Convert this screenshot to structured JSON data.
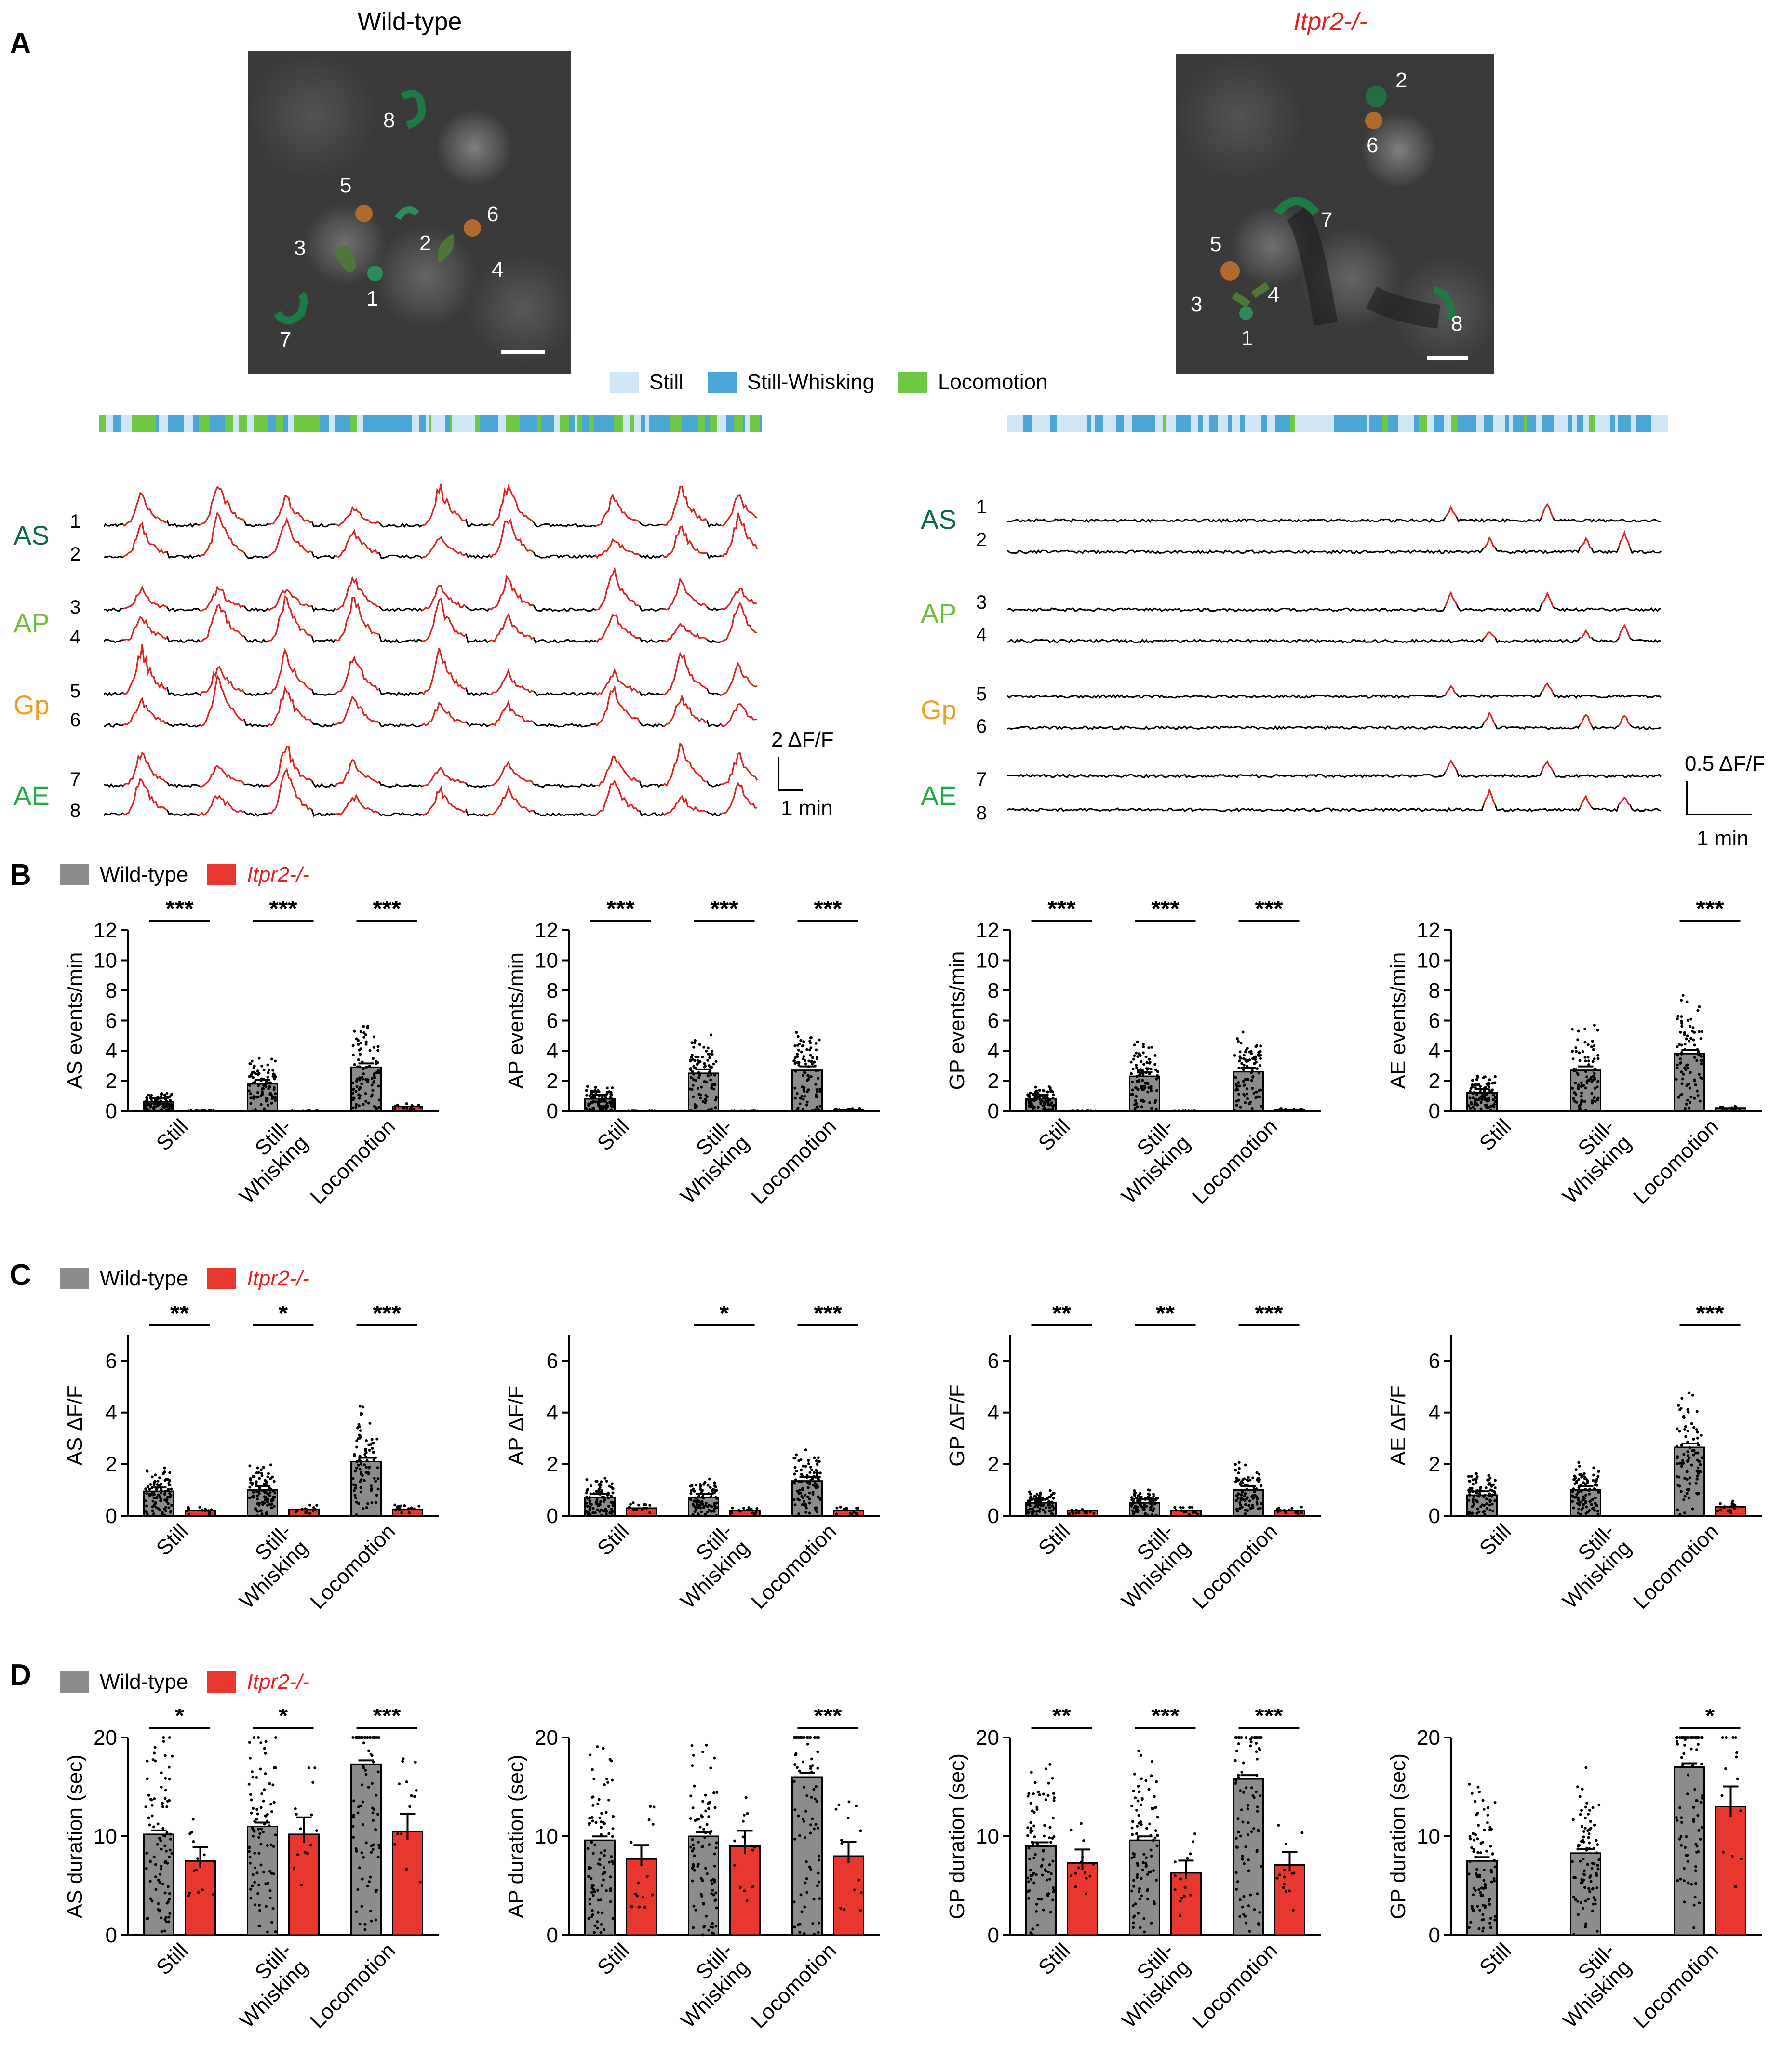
{
  "panels": {
    "A": "A",
    "B": "B",
    "C": "C",
    "D": "D"
  },
  "panel_a": {
    "left_title": "Wild-type",
    "right_title": "Itpr2-/-",
    "left_rois": [
      "1",
      "2",
      "3",
      "4",
      "5",
      "6",
      "7",
      "8"
    ],
    "right_rois": [
      "1",
      "2",
      "3",
      "4",
      "5",
      "6",
      "7",
      "8"
    ],
    "state_legend": [
      {
        "label": "Still",
        "color": "#cfe6f6"
      },
      {
        "label": "Still-Whisking",
        "color": "#4aa6d6"
      },
      {
        "label": "Locomotion",
        "color": "#6fc844"
      }
    ],
    "groups": [
      {
        "label": "AS",
        "color": "#0b6b3a",
        "rows": [
          "1",
          "2"
        ]
      },
      {
        "label": "AP",
        "color": "#6bbf3a",
        "rows": [
          "3",
          "4"
        ]
      },
      {
        "label": "Gp",
        "color": "#f0a020",
        "rows": [
          "5",
          "6"
        ]
      },
      {
        "label": "AE",
        "color": "#22aa44",
        "rows": [
          "7",
          "8"
        ]
      }
    ],
    "left_scale": {
      "y": "2 ΔF/F",
      "x": "1 min"
    },
    "right_scale": {
      "y": "0.5 ΔF/F",
      "x": "1 min"
    },
    "trace_colors": {
      "event": "#e8201c",
      "baseline": "#000000"
    }
  },
  "legend": {
    "wt": "Wild-type",
    "ko": "Itpr2-/-",
    "wt_color": "#8c8c8c",
    "ko_color": "#e8372e"
  },
  "categories": [
    "Still",
    "Still-\nWhisking",
    "Locomotion"
  ],
  "chart_data": [
    {
      "type": "bar",
      "panel": "B",
      "ylabel": "AS events/min",
      "ylim": [
        0,
        12
      ],
      "yticks": [
        0,
        2,
        4,
        6,
        8,
        10,
        12
      ],
      "categories": [
        "Still",
        "Still-Whisking",
        "Locomotion"
      ],
      "series": [
        {
          "name": "Wild-type",
          "values": [
            0.6,
            1.8,
            2.9
          ]
        },
        {
          "name": "Itpr2-/-",
          "values": [
            0.05,
            0.02,
            0.3
          ]
        }
      ],
      "significance": [
        "***",
        "***",
        "***"
      ]
    },
    {
      "type": "bar",
      "panel": "B",
      "ylabel": "AP events/min",
      "ylim": [
        0,
        12
      ],
      "yticks": [
        0,
        2,
        4,
        6,
        8,
        10,
        12
      ],
      "categories": [
        "Still",
        "Still-Whisking",
        "Locomotion"
      ],
      "series": [
        {
          "name": "Wild-type",
          "values": [
            0.8,
            2.5,
            2.7
          ]
        },
        {
          "name": "Itpr2-/-",
          "values": [
            0.02,
            0.02,
            0.1
          ]
        }
      ],
      "significance": [
        "***",
        "***",
        "***"
      ]
    },
    {
      "type": "bar",
      "panel": "B",
      "ylabel": "GP events/min",
      "ylim": [
        0,
        12
      ],
      "yticks": [
        0,
        2,
        4,
        6,
        8,
        10,
        12
      ],
      "categories": [
        "Still",
        "Still-Whisking",
        "Locomotion"
      ],
      "series": [
        {
          "name": "Wild-type",
          "values": [
            0.8,
            2.3,
            2.6
          ]
        },
        {
          "name": "Itpr2-/-",
          "values": [
            0.02,
            0.02,
            0.1
          ]
        }
      ],
      "significance": [
        "***",
        "***",
        "***"
      ]
    },
    {
      "type": "bar",
      "panel": "B",
      "ylabel": "AE events/min",
      "ylim": [
        0,
        12
      ],
      "yticks": [
        0,
        2,
        4,
        6,
        8,
        10,
        12
      ],
      "categories": [
        "Still",
        "Still-Whisking",
        "Locomotion"
      ],
      "series": [
        {
          "name": "Wild-type",
          "values": [
            1.2,
            2.7,
            3.8
          ]
        },
        {
          "name": "Itpr2-/-",
          "values": [
            0,
            0,
            0.2
          ]
        }
      ],
      "significance": [
        "",
        "",
        "***"
      ]
    },
    {
      "type": "bar",
      "panel": "C",
      "ylabel": "AS ΔF/F",
      "ylim": [
        0,
        7
      ],
      "yticks": [
        0,
        2,
        4,
        6
      ],
      "categories": [
        "Still",
        "Still-Whisking",
        "Locomotion"
      ],
      "series": [
        {
          "name": "Wild-type",
          "values": [
            0.95,
            1.0,
            2.1
          ]
        },
        {
          "name": "Itpr2-/-",
          "values": [
            0.2,
            0.25,
            0.25
          ]
        }
      ],
      "significance": [
        "**",
        "*",
        "***"
      ]
    },
    {
      "type": "bar",
      "panel": "C",
      "ylabel": "AP ΔF/F",
      "ylim": [
        0,
        7
      ],
      "yticks": [
        0,
        2,
        4,
        6
      ],
      "categories": [
        "Still",
        "Still-Whisking",
        "Locomotion"
      ],
      "series": [
        {
          "name": "Wild-type",
          "values": [
            0.7,
            0.7,
            1.35
          ]
        },
        {
          "name": "Itpr2-/-",
          "values": [
            0.3,
            0.2,
            0.2
          ]
        }
      ],
      "significance": [
        "",
        "*",
        "***"
      ]
    },
    {
      "type": "bar",
      "panel": "C",
      "ylabel": "GP ΔF/F",
      "ylim": [
        0,
        7
      ],
      "yticks": [
        0,
        2,
        4,
        6
      ],
      "categories": [
        "Still",
        "Still-Whisking",
        "Locomotion"
      ],
      "series": [
        {
          "name": "Wild-type",
          "values": [
            0.5,
            0.5,
            1.0
          ]
        },
        {
          "name": "Itpr2-/-",
          "values": [
            0.2,
            0.2,
            0.2
          ]
        }
      ],
      "significance": [
        "**",
        "**",
        "***"
      ]
    },
    {
      "type": "bar",
      "panel": "C",
      "ylabel": "AE ΔF/F",
      "ylim": [
        0,
        7
      ],
      "yticks": [
        0,
        2,
        4,
        6
      ],
      "categories": [
        "Still",
        "Still-Whisking",
        "Locomotion"
      ],
      "series": [
        {
          "name": "Wild-type",
          "values": [
            0.8,
            1.0,
            2.65
          ]
        },
        {
          "name": "Itpr2-/-",
          "values": [
            0,
            0,
            0.35
          ]
        }
      ],
      "significance": [
        "",
        "",
        "***"
      ]
    },
    {
      "type": "bar",
      "panel": "D",
      "ylabel": "AS duration (sec)",
      "ylim": [
        0,
        20
      ],
      "yticks": [
        0,
        10,
        20
      ],
      "categories": [
        "Still",
        "Still-Whisking",
        "Locomotion"
      ],
      "series": [
        {
          "name": "Wild-type",
          "values": [
            10.2,
            11.0,
            17.3
          ]
        },
        {
          "name": "Itpr2-/-",
          "values": [
            7.5,
            10.2,
            10.5
          ]
        }
      ],
      "significance": [
        "*",
        "*",
        "***"
      ]
    },
    {
      "type": "bar",
      "panel": "D",
      "ylabel": "AP duration (sec)",
      "ylim": [
        0,
        20
      ],
      "yticks": [
        0,
        10,
        20
      ],
      "categories": [
        "Still",
        "Still-Whisking",
        "Locomotion"
      ],
      "series": [
        {
          "name": "Wild-type",
          "values": [
            9.6,
            10.0,
            16.0
          ]
        },
        {
          "name": "Itpr2-/-",
          "values": [
            7.7,
            9.0,
            8.0
          ]
        }
      ],
      "significance": [
        "",
        "",
        "***"
      ]
    },
    {
      "type": "bar",
      "panel": "D",
      "ylabel": "GP duration (sec)",
      "ylim": [
        0,
        20
      ],
      "yticks": [
        0,
        10,
        20
      ],
      "categories": [
        "Still",
        "Still-Whisking",
        "Locomotion"
      ],
      "series": [
        {
          "name": "Wild-type",
          "values": [
            9.0,
            9.6,
            15.8
          ]
        },
        {
          "name": "Itpr2-/-",
          "values": [
            7.3,
            6.3,
            7.1
          ]
        }
      ],
      "significance": [
        "**",
        "***",
        "***"
      ]
    },
    {
      "type": "bar",
      "panel": "D",
      "ylabel": "GP duration (sec)",
      "ylim": [
        0,
        20
      ],
      "yticks": [
        0,
        10,
        20
      ],
      "categories": [
        "Still",
        "Still-Whisking",
        "Locomotion"
      ],
      "series": [
        {
          "name": "Wild-type",
          "values": [
            7.5,
            8.3,
            17.0
          ]
        },
        {
          "name": "Itpr2-/-",
          "values": [
            0,
            0,
            13.0
          ]
        }
      ],
      "significance": [
        "",
        "",
        "*"
      ]
    }
  ]
}
